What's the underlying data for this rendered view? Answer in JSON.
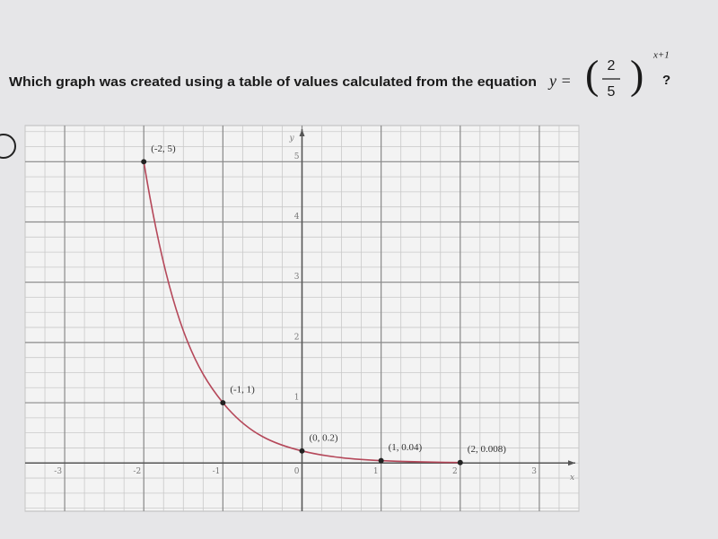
{
  "question": {
    "text": "Which graph was created using a table of values calculated from the equation",
    "lhs": "y =",
    "numerator": "2",
    "denominator": "5",
    "exponent": "x+1",
    "end": "?"
  },
  "chart_data": {
    "type": "line",
    "x_label": "x",
    "y_label": "y",
    "series": [
      {
        "x": [
          -2,
          -1,
          0,
          1,
          2
        ],
        "values": [
          5,
          1,
          0.2,
          0.04,
          0.008
        ],
        "value_labels": [
          "(-2, 5)",
          "(-1, 1)",
          "(0, 0.2)",
          "(1, 0.04)",
          "(2, 0.008)"
        ],
        "color": "#b5485a",
        "marker_color": "#222222"
      }
    ],
    "xlim": [
      -3.5,
      3.5
    ],
    "ylim": [
      -0.8,
      5.6
    ],
    "xticks": [
      -3,
      -2,
      -1,
      0,
      1,
      2,
      3
    ],
    "yticks": [
      1,
      2,
      3,
      4,
      5
    ],
    "grid": true,
    "minor_divisions": 4
  }
}
